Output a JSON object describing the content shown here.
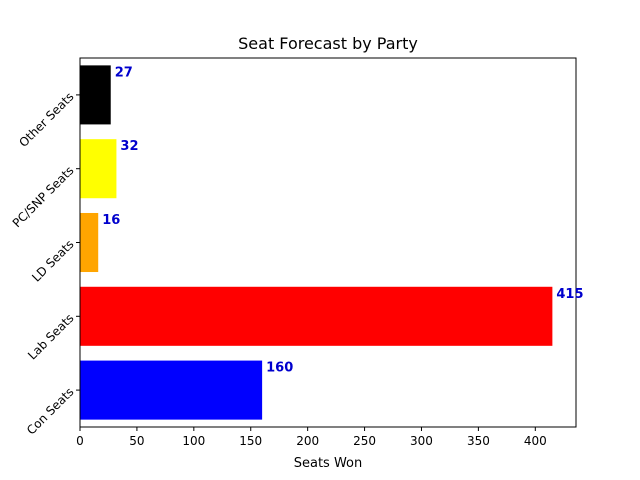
{
  "chart_data": {
    "type": "bar",
    "orientation": "horizontal",
    "title": "Seat Forecast by Party",
    "xlabel": "Seats Won",
    "ylabel": "",
    "categories": [
      "Con Seats",
      "Lab Seats",
      "LD Seats",
      "PC/SNP Seats",
      "Other Seats"
    ],
    "values": [
      160,
      415,
      16,
      32,
      27
    ],
    "colors": [
      "#0000ff",
      "#ff0000",
      "#ffa500",
      "#ffff00",
      "#000000"
    ],
    "value_label_color": "#0000cd",
    "xlim": [
      0,
      435.75
    ],
    "xticks": [
      0,
      50,
      100,
      150,
      200,
      250,
      300,
      350,
      400
    ],
    "grid": false,
    "legend": "none"
  }
}
